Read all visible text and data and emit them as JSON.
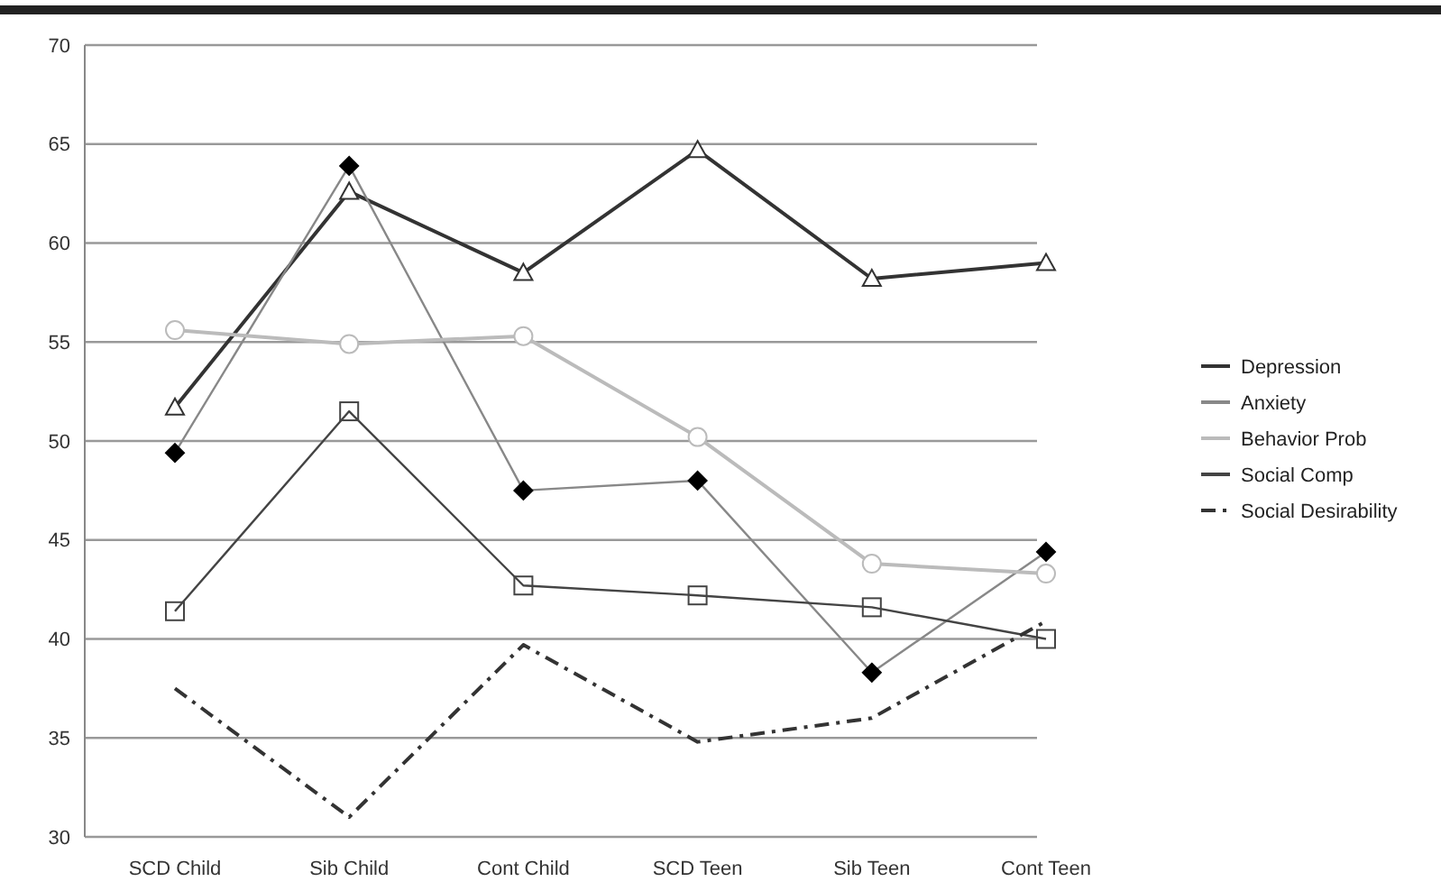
{
  "chart_data": {
    "type": "line",
    "categories": [
      "SCD Child",
      "Sib Child",
      "Cont Child",
      "SCD Teen",
      "Sib Teen",
      "Cont Teen"
    ],
    "series": [
      {
        "name": "Depression",
        "color": "#333333",
        "marker": "triangle",
        "values": [
          51.7,
          62.6,
          58.5,
          64.7,
          58.2,
          59.0
        ]
      },
      {
        "name": "Anxiety",
        "color": "#888888",
        "marker": "diamond",
        "values": [
          49.4,
          63.9,
          47.5,
          48.0,
          38.3,
          44.4
        ]
      },
      {
        "name": "Behavior Prob",
        "color": "#bbbbbb",
        "marker": "circle",
        "values": [
          55.6,
          54.9,
          55.3,
          50.2,
          43.8,
          43.3
        ]
      },
      {
        "name": "Social Comp",
        "color": "#444444",
        "marker": "square",
        "values": [
          41.4,
          51.5,
          42.7,
          42.2,
          41.6,
          40.0
        ]
      },
      {
        "name": "Social Desirability",
        "color": "#333333",
        "marker": "none",
        "line_style": "dashed",
        "values": [
          37.5,
          31,
          39.7,
          34.8,
          36,
          40.9
        ]
      }
    ],
    "ylim": [
      30,
      70
    ],
    "yticks": [
      30,
      35,
      40,
      45,
      50,
      55,
      60,
      65,
      70
    ],
    "grid": "y",
    "legend": "right"
  }
}
